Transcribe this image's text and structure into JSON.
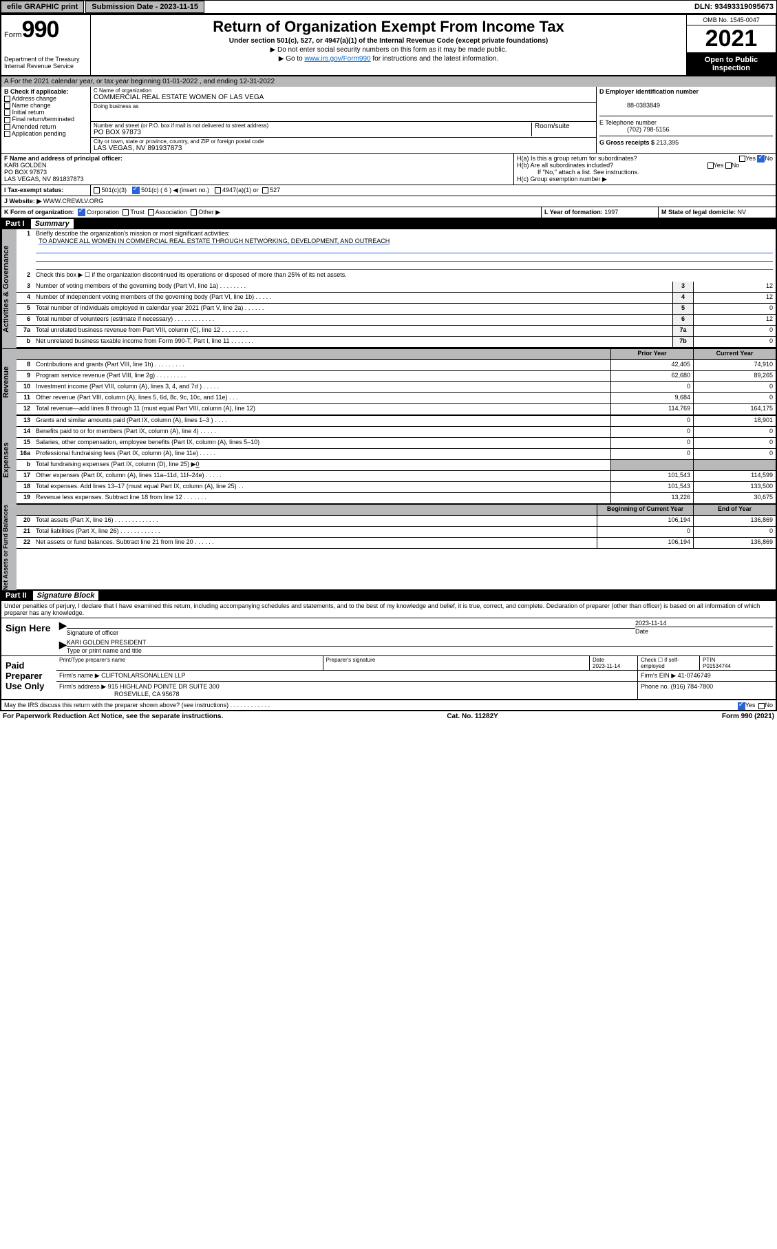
{
  "topbar": {
    "btn1": "efile GRAPHIC print",
    "sub_label": "Submission Date - 2023-11-15",
    "dln": "DLN: 93493319095673"
  },
  "header": {
    "form_word": "Form",
    "form_num": "990",
    "dept": "Department of the Treasury",
    "irs": "Internal Revenue Service",
    "title": "Return of Organization Exempt From Income Tax",
    "sub": "Under section 501(c), 527, or 4947(a)(1) of the Internal Revenue Code (except private foundations)",
    "note1": "▶ Do not enter social security numbers on this form as it may be made public.",
    "note2_pre": "▶ Go to ",
    "note2_link": "www.irs.gov/Form990",
    "note2_post": " for instructions and the latest information.",
    "omb": "OMB No. 1545-0047",
    "year": "2021",
    "open": "Open to Public Inspection"
  },
  "a_line": "A For the 2021 calendar year, or tax year beginning 01-01-2022    , and ending 12-31-2022",
  "b": {
    "title": "B Check if applicable:",
    "items": [
      "Address change",
      "Name change",
      "Initial return",
      "Final return/terminated",
      "Amended return",
      "Application pending"
    ]
  },
  "c": {
    "name_label": "C Name of organization",
    "name": "COMMERCIAL REAL ESTATE WOMEN OF LAS VEGA",
    "dba": "Doing business as",
    "street_label": "Number and street (or P.O. box if mail is not delivered to street address)",
    "room_label": "Room/suite",
    "street": "PO BOX 97873",
    "city_label": "City or town, state or province, country, and ZIP or foreign postal code",
    "city": "LAS VEGAS, NV  891937873"
  },
  "d": {
    "label": "D Employer identification number",
    "val": "88-0383849"
  },
  "e": {
    "label": "E Telephone number",
    "val": "(702) 798-5156"
  },
  "g": {
    "label": "G Gross receipts $",
    "val": "213,395"
  },
  "f": {
    "label": "F Name and address of principal officer:",
    "name": "KARI GOLDEN",
    "street": "PO BOX 97873",
    "city": "LAS VEGAS, NV  891837873"
  },
  "h": {
    "a": "H(a)  Is this a group return for subordinates?",
    "b": "H(b)  Are all subordinates included?",
    "note": "If \"No,\" attach a list. See instructions.",
    "c": "H(c)  Group exemption number ▶"
  },
  "i": {
    "label": "I    Tax-exempt status:",
    "opts": [
      "501(c)(3)",
      "501(c) ( 6 ) ◀ (insert no.)",
      "4947(a)(1) or",
      "527"
    ]
  },
  "j": {
    "label": "J    Website: ▶",
    "val": "WWW.CREWLV.ORG"
  },
  "k": {
    "label": "K Form of organization:",
    "corp": "Corporation",
    "trust": "Trust",
    "assoc": "Association",
    "other": "Other ▶"
  },
  "l": {
    "label": "L Year of formation:",
    "val": "1997"
  },
  "m": {
    "label": "M State of legal domicile:",
    "val": "NV"
  },
  "part1": {
    "label": "Part I",
    "title": "Summary"
  },
  "side": {
    "act": "Activities & Governance",
    "rev": "Revenue",
    "exp": "Expenses",
    "net": "Net Assets or Fund Balances"
  },
  "line1": {
    "text": "Briefly describe the organization's mission or most significant activities:",
    "mission": "TO ADVANCE ALL WOMEN IN COMMERCIAL REAL ESTATE THROUGH NETWORKING, DEVELOPMENT, AND OUTREACH"
  },
  "line2": "Check this box ▶ ☐  if the organization discontinued its operations or disposed of more than 25% of its net assets.",
  "gov_lines": [
    {
      "n": "3",
      "t": "Number of voting members of the governing body (Part VI, line 1a)   .   .   .   .   .   .   .   .",
      "box": "3",
      "v": "12"
    },
    {
      "n": "4",
      "t": "Number of independent voting members of the governing body (Part VI, line 1b)   .   .   .   .   .",
      "box": "4",
      "v": "12"
    },
    {
      "n": "5",
      "t": "Total number of individuals employed in calendar year 2021 (Part V, line 2a)   .   .   .   .   .   .",
      "box": "5",
      "v": "0"
    },
    {
      "n": "6",
      "t": "Total number of volunteers (estimate if necessary)   .   .   .   .   .   .   .   .   .   .   .   .",
      "box": "6",
      "v": "12"
    },
    {
      "n": "7a",
      "t": "Total unrelated business revenue from Part VIII, column (C), line 12   .   .   .   .   .   .   .   .",
      "box": "7a",
      "v": "0"
    },
    {
      "n": "b",
      "t": "Net unrelated business taxable income from Form 990-T, Part I, line 11   .   .   .   .   .   .   .",
      "box": "7b",
      "v": "0"
    }
  ],
  "col_head": {
    "prior": "Prior Year",
    "curr": "Current Year"
  },
  "rev_lines": [
    {
      "n": "8",
      "t": "Contributions and grants (Part VIII, line 1h)   .   .   .   .   .   .   .   .   .",
      "p": "42,405",
      "c": "74,910"
    },
    {
      "n": "9",
      "t": "Program service revenue (Part VIII, line 2g)   .   .   .   .   .   .   .   .   .",
      "p": "62,680",
      "c": "89,265"
    },
    {
      "n": "10",
      "t": "Investment income (Part VIII, column (A), lines 3, 4, and 7d )   .   .   .   .   .",
      "p": "0",
      "c": "0"
    },
    {
      "n": "11",
      "t": "Other revenue (Part VIII, column (A), lines 5, 6d, 8c, 9c, 10c, and 11e)   .   .   .",
      "p": "9,684",
      "c": "0"
    },
    {
      "n": "12",
      "t": "Total revenue—add lines 8 through 11 (must equal Part VIII, column (A), line 12)",
      "p": "114,769",
      "c": "164,175"
    }
  ],
  "exp_lines": [
    {
      "n": "13",
      "t": "Grants and similar amounts paid (Part IX, column (A), lines 1–3 )   .   .   .   .",
      "p": "0",
      "c": "18,901"
    },
    {
      "n": "14",
      "t": "Benefits paid to or for members (Part IX, column (A), line 4)   .   .   .   .   .",
      "p": "0",
      "c": "0"
    },
    {
      "n": "15",
      "t": "Salaries, other compensation, employee benefits (Part IX, column (A), lines 5–10)",
      "p": "0",
      "c": "0"
    },
    {
      "n": "16a",
      "t": "Professional fundraising fees (Part IX, column (A), line 11e)   .   .   .   .   .",
      "p": "0",
      "c": "0"
    }
  ],
  "line16b": {
    "t": "Total fundraising expenses (Part IX, column (D), line 25) ▶",
    "v": "0"
  },
  "exp_lines2": [
    {
      "n": "17",
      "t": "Other expenses (Part IX, column (A), lines 11a–11d, 11f–24e)   .   .   .   .   .",
      "p": "101,543",
      "c": "114,599"
    },
    {
      "n": "18",
      "t": "Total expenses. Add lines 13–17 (must equal Part IX, column (A), line 25)   .   .",
      "p": "101,543",
      "c": "133,500"
    },
    {
      "n": "19",
      "t": "Revenue less expenses. Subtract line 18 from line 12   .   .   .   .   .   .   .",
      "p": "13,226",
      "c": "30,675"
    }
  ],
  "col_head2": {
    "prior": "Beginning of Current Year",
    "curr": "End of Year"
  },
  "net_lines": [
    {
      "n": "20",
      "t": "Total assets (Part X, line 16)   .   .   .   .   .   .   .   .   .   .   .   .   .",
      "p": "106,194",
      "c": "136,869"
    },
    {
      "n": "21",
      "t": "Total liabilities (Part X, line 26)   .   .   .   .   .   .   .   .   .   .   .   .",
      "p": "0",
      "c": "0"
    },
    {
      "n": "22",
      "t": "Net assets or fund balances. Subtract line 21 from line 20   .   .   .   .   .   .",
      "p": "106,194",
      "c": "136,869"
    }
  ],
  "part2": {
    "label": "Part II",
    "title": "Signature Block"
  },
  "penalty": "Under penalties of perjury, I declare that I have examined this return, including accompanying schedules and statements, and to the best of my knowledge and belief, it is true, correct, and complete. Declaration of preparer (other than officer) is based on all information of which preparer has any knowledge.",
  "sign": {
    "here": "Sign Here",
    "sig_label": "Signature of officer",
    "date": "2023-11-14",
    "date_label": "Date",
    "name": "KARI GOLDEN PRESIDENT",
    "name_label": "Type or print name and title"
  },
  "paid": {
    "label": "Paid Preparer Use Only",
    "h1": "Print/Type preparer's name",
    "h2": "Preparer's signature",
    "h3": "Date",
    "date": "2023-11-14",
    "h4": "Check ☐ if self-employed",
    "h5": "PTIN",
    "ptin": "P01534744",
    "firm_name_l": "Firm's name    ▶",
    "firm_name": "CLIFTONLARSONALLEN LLP",
    "firm_ein_l": "Firm's EIN ▶",
    "firm_ein": "41-0746749",
    "firm_addr_l": "Firm's address ▶",
    "firm_addr1": "915 HIGHLAND POINTE DR SUITE 300",
    "firm_addr2": "ROSEVILLE, CA  95678",
    "phone_l": "Phone no.",
    "phone": "(916) 784-7800"
  },
  "may_discuss": "May the IRS discuss this return with the preparer shown above? (see instructions)   .   .   .   .   .   .   .   .   .   .   .   .",
  "yes": "Yes",
  "no": "No",
  "footer": {
    "left": "For Paperwork Reduction Act Notice, see the separate instructions.",
    "mid": "Cat. No. 11282Y",
    "right": "Form 990 (2021)"
  }
}
